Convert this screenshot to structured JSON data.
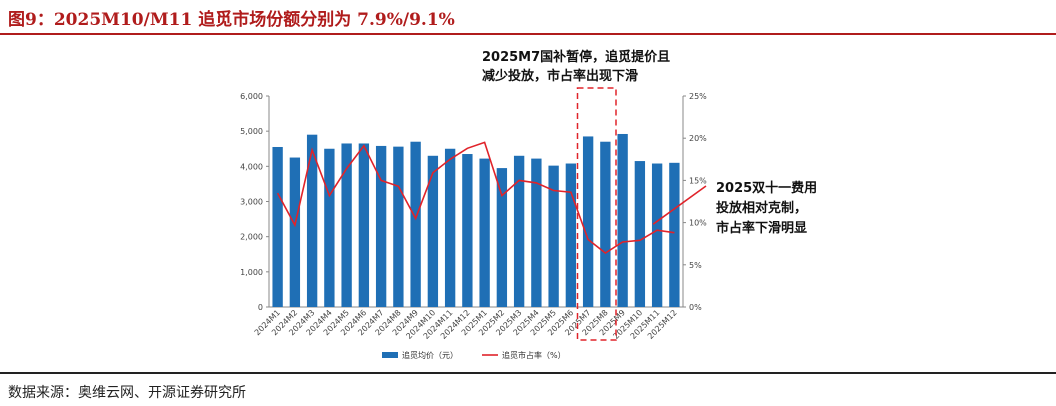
{
  "header": {
    "title": "图9：2025M10/M11 追觅市场份额分别为 7.9%/9.1%"
  },
  "footer": {
    "source": "数据来源：奥维云网、开源证券研究所"
  },
  "chart_data": {
    "type": "bar",
    "categories": [
      "2024M1",
      "2024M2",
      "2024M3",
      "2024M4",
      "2024M5",
      "2024M6",
      "2024M7",
      "2024M8",
      "2024M9",
      "2024M10",
      "2024M11",
      "2024M12",
      "2025M1",
      "2025M2",
      "2025M3",
      "2025M4",
      "2025M5",
      "2025M6",
      "2025M7",
      "2025M8",
      "2025M9",
      "2025M10",
      "2025M11",
      "2025M12"
    ],
    "series": [
      {
        "name": "追觅均价（元）",
        "type": "bar",
        "axis": "left",
        "color": "#1f6fb5",
        "values": [
          4550,
          4250,
          4900,
          4500,
          4650,
          4650,
          4580,
          4560,
          4700,
          4300,
          4500,
          4350,
          4220,
          3950,
          4300,
          4220,
          4020,
          4080,
          4850,
          4700,
          4920,
          4150,
          4080,
          4100
        ]
      },
      {
        "name": "追觅市占率（%）",
        "type": "line",
        "axis": "right",
        "color": "#e0232a",
        "values": [
          13.5,
          9.7,
          18.6,
          13.2,
          16.4,
          19.1,
          15.0,
          14.3,
          10.5,
          15.9,
          17.5,
          18.8,
          19.5,
          13.2,
          15.0,
          14.7,
          13.8,
          13.6,
          8.0,
          6.4,
          7.7,
          7.9,
          9.1,
          8.8
        ]
      }
    ],
    "y_left": {
      "ylim": [
        0,
        6000
      ],
      "ticks": [
        "0",
        "1,000",
        "2,000",
        "3,000",
        "4,000",
        "5,000",
        "6,000"
      ]
    },
    "y_right": {
      "ylim": [
        0,
        25
      ],
      "ticks": [
        "0%",
        "5%",
        "10%",
        "15%",
        "20%",
        "25%"
      ]
    },
    "grid": false,
    "legend": "bottom-center",
    "annotations": [
      {
        "lines": [
          "2025M7国补暂停，追觅提价且",
          "减少投放，市占率出现下滑"
        ],
        "target": [
          "2025M7",
          "2025M8"
        ]
      },
      {
        "lines": [
          "2025双十一费用",
          "投放相对克制，",
          "市占率下滑明显"
        ],
        "target": [
          "2025M11"
        ]
      }
    ]
  }
}
